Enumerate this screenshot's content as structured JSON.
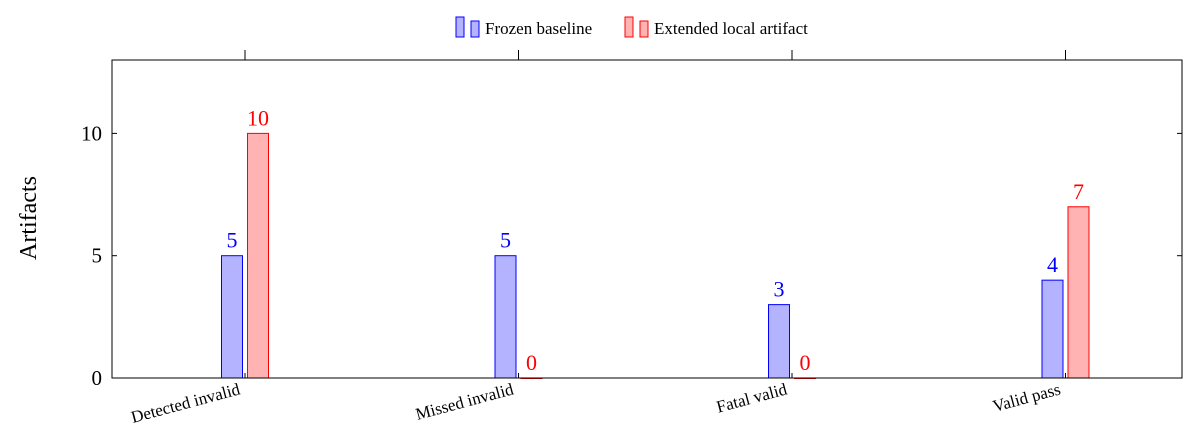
{
  "chart_data": {
    "type": "bar",
    "title": "",
    "xlabel": "",
    "ylabel": "Artifacts",
    "categories": [
      "Detected invalid",
      "Missed invalid",
      "Fatal valid",
      "Valid pass"
    ],
    "series": [
      {
        "name": "Frozen baseline",
        "values": [
          5,
          5,
          3,
          4
        ],
        "fill": "#b3b3ff",
        "stroke": "#0000ff",
        "label_color": "#0000ff"
      },
      {
        "name": "Extended local artifact",
        "values": [
          10,
          0,
          0,
          7
        ],
        "fill": "#ffb3b3",
        "stroke": "#ff0000",
        "label_color": "#ff0000"
      }
    ],
    "ylim": [
      0,
      13
    ],
    "yticks": [
      0,
      5,
      10
    ],
    "ytick_labels": [
      "0",
      "5",
      "10"
    ],
    "grid": false,
    "legend_position": "top-center"
  }
}
